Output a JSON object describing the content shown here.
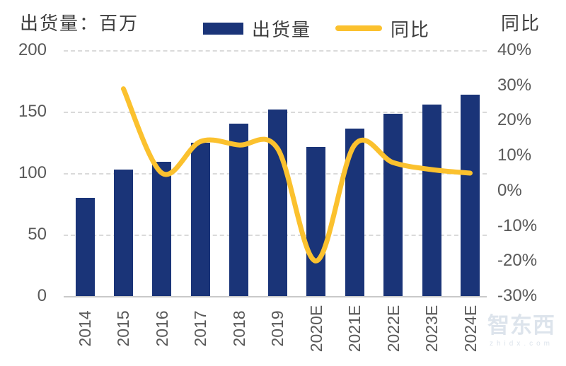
{
  "header": {
    "left_axis_title": "出货量：百万",
    "right_axis_title": "同比"
  },
  "legend": {
    "bar_label": "出货量",
    "line_label": "同比"
  },
  "watermark": {
    "logo": "智东西",
    "domain": "zhidx.com"
  },
  "colors": {
    "bar": "#1A3478",
    "line": "#FBC12E",
    "tick_text": "#595959",
    "title_text": "#3d3d3d",
    "gridline": "#dadada",
    "axis_line": "#c9c9c9"
  },
  "chart_data": {
    "type": "bar",
    "subtype": "bar+line combo, dual axis",
    "title": "出货量：百万 / 同比",
    "categories": [
      "2014",
      "2015",
      "2016",
      "2017",
      "2018",
      "2019",
      "2020E",
      "2021E",
      "2022E",
      "2023E",
      "2024E"
    ],
    "series": [
      {
        "name": "出货量",
        "type": "bar",
        "axis": "left",
        "unit": "百万",
        "values": [
          80,
          103,
          109,
          125,
          140,
          152,
          121,
          136,
          148,
          156,
          164
        ]
      },
      {
        "name": "同比",
        "type": "line",
        "axis": "right",
        "unit": "%",
        "values": [
          null,
          29,
          5,
          14,
          13,
          12,
          -20,
          13,
          8,
          6,
          5
        ]
      }
    ],
    "left_axis": {
      "label": "出货量：百万",
      "ticks": [
        "200",
        "150",
        "100",
        "50",
        "0"
      ],
      "tick_values": [
        200,
        150,
        100,
        50,
        0
      ],
      "range": [
        0,
        200
      ]
    },
    "right_axis": {
      "label": "同比",
      "ticks": [
        "40%",
        "30%",
        "20%",
        "10%",
        "0%",
        "-10%",
        "-20%",
        "-30%"
      ],
      "tick_values": [
        40,
        30,
        20,
        10,
        0,
        -10,
        -20,
        -30
      ],
      "range": [
        -30,
        40
      ]
    },
    "grid": "horizontal dashed at left-axis ticks",
    "legend_position": "top center",
    "line_smoothing": true
  }
}
